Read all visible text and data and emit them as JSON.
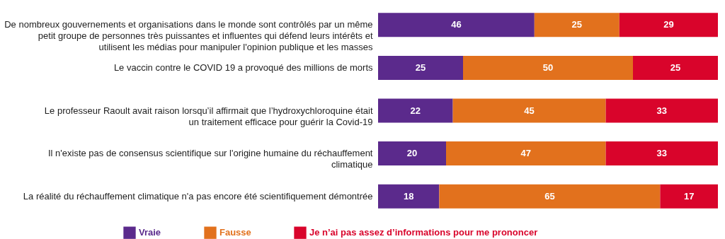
{
  "chart_data": {
    "type": "bar",
    "orientation": "horizontal",
    "stacked": true,
    "data_labels": true,
    "legend": "bottom",
    "tick_labels": "y",
    "categories": [
      "De nombreux gouvernements et organisations dans le monde sont contrôlés par un même petit groupe de personnes très puissantes et influentes qui défend leurs intérêts et utilisent les médias pour manipuler l'opinion publique et les masses",
      "Le vaccin contre le COVID 19 a provoqué des millions de morts",
      "Le professeur Raoult avait raison lorsqu’il affirmait que l’hydroxychloroquine était un traitement efficace pour guérir la Covid-19",
      "Il n'existe pas de consensus scientifique sur l'origine humaine du réchauffement climatique",
      "La réalité du réchauffement climatique n'a pas encore été scientifiquement démontrée"
    ],
    "series": [
      {
        "name": "Vraie",
        "color": "#5b2a8c",
        "values": [
          46,
          25,
          22,
          20,
          18
        ]
      },
      {
        "name": "Fausse",
        "color": "#e2711d",
        "values": [
          25,
          50,
          45,
          47,
          65
        ]
      },
      {
        "name": "Je n’ai pas assez d’informations pour me prononcer",
        "color": "#d9042b",
        "values": [
          29,
          25,
          33,
          33,
          17
        ]
      }
    ]
  }
}
